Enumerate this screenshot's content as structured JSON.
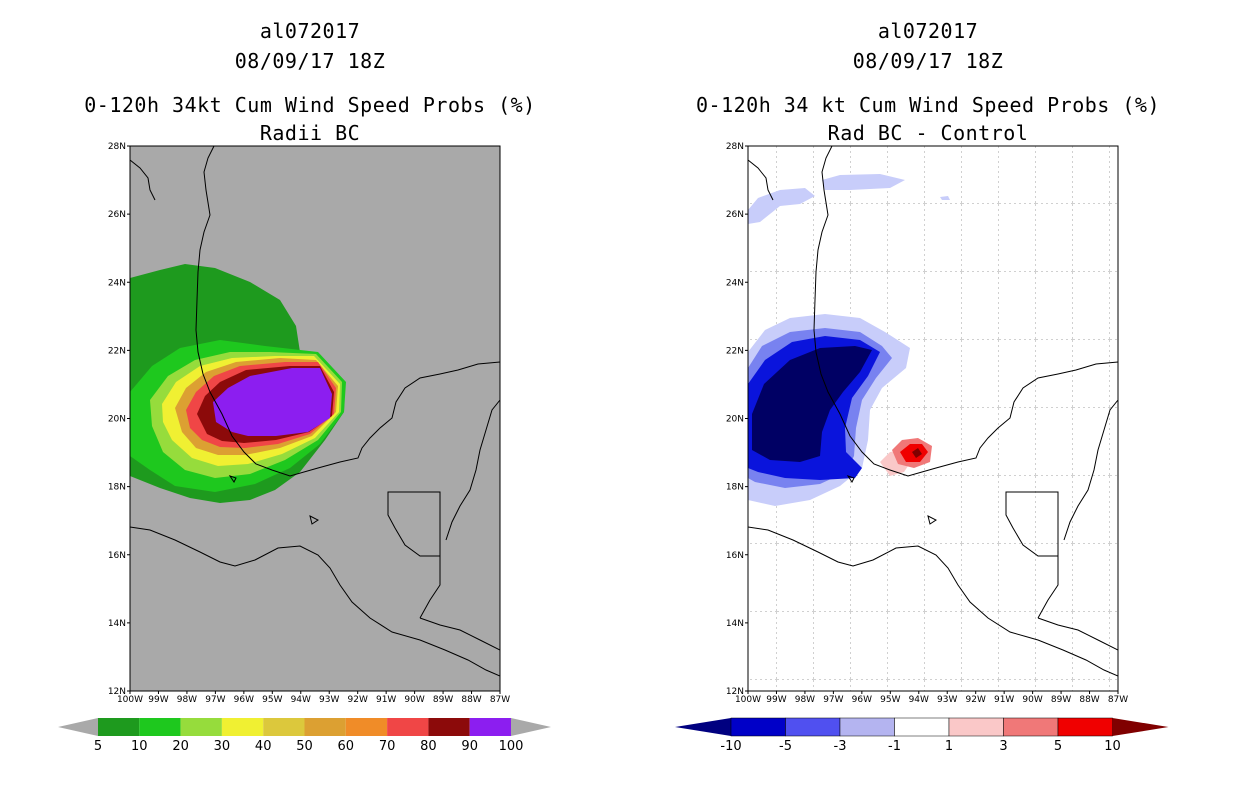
{
  "left_panel": {
    "storm_id": "al072017",
    "datetime": "08/09/17 18Z",
    "product": "0-120h 34kt Cum Wind Speed Probs (%)",
    "subtitle": "Radii BC",
    "colorbar_labels": [
      "5",
      "10",
      "20",
      "30",
      "40",
      "50",
      "60",
      "70",
      "80",
      "90",
      "100"
    ],
    "colorbar_colors": [
      "#1e9a1e",
      "#1ec81e",
      "#96dc3c",
      "#f0f032",
      "#dcc83c",
      "#dca032",
      "#f08c28",
      "#f04646",
      "#8c0a0a",
      "#8c1ef0"
    ]
  },
  "right_panel": {
    "storm_id": "al072017",
    "datetime": "08/09/17 18Z",
    "product": "0-120h 34 kt Cum Wind Speed Probs (%)",
    "subtitle": "Rad BC - Control",
    "colorbar_labels": [
      "-10",
      "-5",
      "-3",
      "-1",
      "1",
      "3",
      "5",
      "10"
    ],
    "colorbar_colors": [
      "#0000c8",
      "#5050f0",
      "#b4b4f0",
      "#ffffff",
      "#fac8c8",
      "#f07878",
      "#f00000"
    ],
    "colorbar_end_low": "#000080",
    "colorbar_end_high": "#800000"
  },
  "axes": {
    "lat_labels": [
      "12N",
      "14N",
      "16N",
      "18N",
      "20N",
      "22N",
      "24N",
      "26N",
      "28N"
    ],
    "lon_labels": [
      "100W",
      "99W",
      "98W",
      "97W",
      "96W",
      "95W",
      "94W",
      "93W",
      "92W",
      "91W",
      "90W",
      "89W",
      "88W",
      "87W"
    ]
  },
  "colors": {
    "land_mask": "#a9a9a9",
    "neg_dark": "#000064",
    "neg_mid": "#0a14dc",
    "neg_light": "#7882f0",
    "neg_pale": "#c8cdfa"
  }
}
